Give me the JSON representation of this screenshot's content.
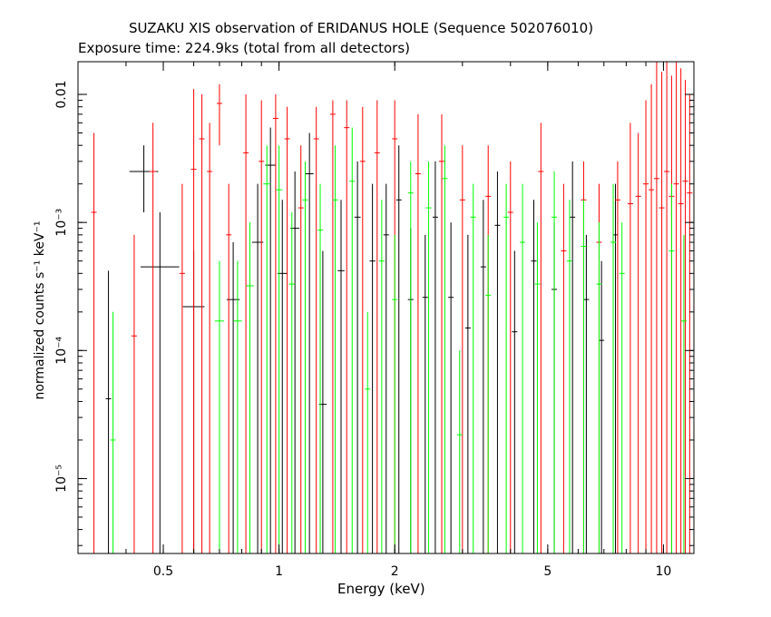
{
  "chart_data": {
    "type": "scatter",
    "title": "SUZAKU XIS observation of ERIDANUS HOLE (Sequence 502076010)",
    "subtitle": "Exposure time: 224.9ks (total from all detectors)",
    "xlabel": "Energy (keV)",
    "ylabel": "normalized counts s⁻¹ keV⁻¹",
    "x_scale": "log",
    "y_scale": "log",
    "xlim": [
      0.3,
      12
    ],
    "ylim": [
      2.6e-06,
      0.018
    ],
    "x_ticks": [
      {
        "value": 0.5,
        "label": "0.5"
      },
      {
        "value": 1,
        "label": "1"
      },
      {
        "value": 2,
        "label": "2"
      },
      {
        "value": 5,
        "label": "5"
      },
      {
        "value": 10,
        "label": "10"
      }
    ],
    "y_ticks": [
      {
        "value": 1e-05,
        "label": "10⁻⁵"
      },
      {
        "value": 0.0001,
        "label": "10⁻⁴"
      },
      {
        "value": 0.001,
        "label": "10⁻³"
      },
      {
        "value": 0.01,
        "label": "0.01"
      }
    ],
    "series": [
      {
        "color": "#000000",
        "points": [
          {
            "x": 0.36,
            "y": 4.2e-05,
            "xerr": 0.0,
            "ylo": 2.6e-06,
            "yhi": 0.00042
          },
          {
            "x": 0.445,
            "y": 0.0025,
            "xerr": 0.04,
            "ylo": 0.0012,
            "yhi": 0.004
          },
          {
            "x": 0.49,
            "y": 0.00045,
            "xerr": 0.06,
            "ylo": 2.6e-06,
            "yhi": 0.0012
          },
          {
            "x": 0.6,
            "y": 0.00022,
            "xerr": 0.04,
            "ylo": 2.6e-06,
            "yhi": 0.0006
          },
          {
            "x": 0.76,
            "y": 0.00025,
            "xerr": 0.03,
            "ylo": 2.6e-06,
            "yhi": 0.0007
          },
          {
            "x": 0.88,
            "y": 0.0007,
            "xerr": 0.03,
            "ylo": 2.6e-06,
            "yhi": 0.002
          },
          {
            "x": 0.95,
            "y": 0.0028,
            "xerr": 0.03,
            "ylo": 2.6e-06,
            "yhi": 0.0055
          },
          {
            "x": 1.02,
            "y": 0.0004,
            "xerr": 0.03,
            "ylo": 2.6e-06,
            "yhi": 0.0015
          },
          {
            "x": 1.1,
            "y": 0.0009,
            "xerr": 0.03,
            "ylo": 2.6e-06,
            "yhi": 0.0025
          },
          {
            "x": 1.2,
            "y": 0.0024,
            "xerr": 0.03,
            "ylo": 2.6e-06,
            "yhi": 0.005
          },
          {
            "x": 1.3,
            "y": 3.8e-05,
            "xerr": 0.03,
            "ylo": 2.6e-06,
            "yhi": 0.0006
          },
          {
            "x": 1.45,
            "y": 0.00042,
            "xerr": 0.03,
            "ylo": 2.6e-06,
            "yhi": 0.0015
          },
          {
            "x": 1.6,
            "y": 0.0011,
            "xerr": 0.03,
            "ylo": 2.6e-06,
            "yhi": 0.003
          },
          {
            "x": 1.75,
            "y": 0.0005,
            "xerr": 0.03,
            "ylo": 2.6e-06,
            "yhi": 0.002
          },
          {
            "x": 1.9,
            "y": 0.0008,
            "xerr": 0.03,
            "ylo": 2.6e-06,
            "yhi": 0.002
          },
          {
            "x": 2.05,
            "y": 0.0015,
            "xerr": 0.03,
            "ylo": 2.6e-06,
            "yhi": 0.004
          },
          {
            "x": 2.2,
            "y": 0.00025,
            "xerr": 0.03,
            "ylo": 2.6e-06,
            "yhi": 0.0009
          },
          {
            "x": 2.4,
            "y": 0.00026,
            "xerr": 0.03,
            "ylo": 2.6e-06,
            "yhi": 0.0008
          },
          {
            "x": 2.55,
            "y": 0.0011,
            "xerr": 0.03,
            "ylo": 2.6e-06,
            "yhi": 0.003
          },
          {
            "x": 2.8,
            "y": 0.00026,
            "xerr": 0.03,
            "ylo": 2.6e-06,
            "yhi": 0.001
          },
          {
            "x": 3.1,
            "y": 0.00015,
            "xerr": 0.03,
            "ylo": 2.6e-06,
            "yhi": 0.0008
          },
          {
            "x": 3.4,
            "y": 0.00045,
            "xerr": 0.03,
            "ylo": 2.6e-06,
            "yhi": 0.0015
          },
          {
            "x": 3.7,
            "y": 0.00095,
            "xerr": 0.03,
            "ylo": 2.6e-06,
            "yhi": 0.0025
          },
          {
            "x": 4.1,
            "y": 0.00014,
            "xerr": 0.03,
            "ylo": 2.6e-06,
            "yhi": 0.0006
          },
          {
            "x": 4.6,
            "y": 0.0005,
            "xerr": 0.03,
            "ylo": 2.6e-06,
            "yhi": 0.0015
          },
          {
            "x": 5.2,
            "y": 0.0003,
            "xerr": 0.04,
            "ylo": 2.6e-06,
            "yhi": 0.001
          },
          {
            "x": 5.8,
            "y": 0.0011,
            "xerr": 0.04,
            "ylo": 2.6e-06,
            "yhi": 0.003
          },
          {
            "x": 6.3,
            "y": 0.00025,
            "xerr": 0.04,
            "ylo": 2.6e-06,
            "yhi": 0.0008
          },
          {
            "x": 6.9,
            "y": 0.00012,
            "xerr": 0.05,
            "ylo": 2.6e-06,
            "yhi": 0.0005
          },
          {
            "x": 7.5,
            "y": 0.0008,
            "xerr": 0.05,
            "ylo": 2.6e-06,
            "yhi": 0.002
          }
        ]
      },
      {
        "color": "#ff0000",
        "points": [
          {
            "x": 0.33,
            "y": 0.0012,
            "xerr": 0.0,
            "ylo": 2.6e-06,
            "yhi": 0.005
          },
          {
            "x": 0.42,
            "y": 0.00013,
            "xerr": 0.0,
            "ylo": 2.6e-06,
            "yhi": 0.0008
          },
          {
            "x": 0.47,
            "y": 0.0025,
            "xerr": 0.01,
            "ylo": 2.6e-06,
            "yhi": 0.006
          },
          {
            "x": 0.56,
            "y": 0.0004,
            "xerr": 0.0,
            "ylo": 2.6e-06,
            "yhi": 0.002
          },
          {
            "x": 0.6,
            "y": 0.0026,
            "xerr": 0.01,
            "ylo": 2.6e-06,
            "yhi": 0.011
          },
          {
            "x": 0.63,
            "y": 0.0045,
            "xerr": 0.01,
            "ylo": 2.6e-06,
            "yhi": 0.01
          },
          {
            "x": 0.66,
            "y": 0.0025,
            "xerr": 0.01,
            "ylo": 2.6e-06,
            "yhi": 0.006
          },
          {
            "x": 0.7,
            "y": 0.0085,
            "xerr": 0.01,
            "ylo": 0.004,
            "yhi": 0.012
          },
          {
            "x": 0.74,
            "y": 0.0008,
            "xerr": 0.0,
            "ylo": 2.6e-06,
            "yhi": 0.002
          },
          {
            "x": 0.82,
            "y": 0.0035,
            "xerr": 0.01,
            "ylo": 2.6e-06,
            "yhi": 0.01
          },
          {
            "x": 0.9,
            "y": 0.003,
            "xerr": 0.01,
            "ylo": 2.6e-06,
            "yhi": 0.009
          },
          {
            "x": 0.98,
            "y": 0.0065,
            "xerr": 0.01,
            "ylo": 2.6e-06,
            "yhi": 0.01
          },
          {
            "x": 1.05,
            "y": 0.0045,
            "xerr": 0.01,
            "ylo": 2.6e-06,
            "yhi": 0.008
          },
          {
            "x": 1.14,
            "y": 0.0013,
            "xerr": 0.01,
            "ylo": 2.6e-06,
            "yhi": 0.004
          },
          {
            "x": 1.25,
            "y": 0.0045,
            "xerr": 0.01,
            "ylo": 2.6e-06,
            "yhi": 0.008
          },
          {
            "x": 1.38,
            "y": 0.007,
            "xerr": 0.01,
            "ylo": 2.6e-06,
            "yhi": 0.009
          },
          {
            "x": 1.5,
            "y": 0.0055,
            "xerr": 0.01,
            "ylo": 2.6e-06,
            "yhi": 0.009
          },
          {
            "x": 1.65,
            "y": 0.003,
            "xerr": 0.01,
            "ylo": 2.6e-06,
            "yhi": 0.008
          },
          {
            "x": 1.8,
            "y": 0.0035,
            "xerr": 0.01,
            "ylo": 2.6e-06,
            "yhi": 0.009
          },
          {
            "x": 2.0,
            "y": 0.0045,
            "xerr": 0.02,
            "ylo": 2.6e-06,
            "yhi": 0.009
          },
          {
            "x": 2.3,
            "y": 0.0024,
            "xerr": 0.02,
            "ylo": 2.6e-06,
            "yhi": 0.007
          },
          {
            "x": 2.65,
            "y": 0.003,
            "xerr": 0.02,
            "ylo": 2.6e-06,
            "yhi": 0.007
          },
          {
            "x": 3.0,
            "y": 0.0015,
            "xerr": 0.02,
            "ylo": 2.6e-06,
            "yhi": 0.004
          },
          {
            "x": 3.5,
            "y": 0.0016,
            "xerr": 0.02,
            "ylo": 2.6e-06,
            "yhi": 0.004
          },
          {
            "x": 4.0,
            "y": 0.0012,
            "xerr": 0.02,
            "ylo": 2.6e-06,
            "yhi": 0.003
          },
          {
            "x": 4.8,
            "y": 0.0025,
            "xerr": 0.02,
            "ylo": 2.6e-06,
            "yhi": 0.006
          },
          {
            "x": 5.5,
            "y": 0.0006,
            "xerr": 0.02,
            "ylo": 2.6e-06,
            "yhi": 0.002
          },
          {
            "x": 6.2,
            "y": 0.0015,
            "xerr": 0.02,
            "ylo": 2.6e-06,
            "yhi": 0.003
          },
          {
            "x": 6.8,
            "y": 0.0007,
            "xerr": 0.02,
            "ylo": 2.6e-06,
            "yhi": 0.002
          },
          {
            "x": 7.6,
            "y": 0.0015,
            "xerr": 0.02,
            "ylo": 2.6e-06,
            "yhi": 0.003
          },
          {
            "x": 8.2,
            "y": 0.0014,
            "xerr": 0.03,
            "ylo": 2.6e-06,
            "yhi": 0.006
          },
          {
            "x": 8.6,
            "y": 0.0016,
            "xerr": 0.03,
            "ylo": 2.6e-06,
            "yhi": 0.005
          },
          {
            "x": 9.0,
            "y": 0.002,
            "xerr": 0.03,
            "ylo": 2.6e-06,
            "yhi": 0.009
          },
          {
            "x": 9.3,
            "y": 0.0018,
            "xerr": 0.03,
            "ylo": 2.6e-06,
            "yhi": 0.012
          },
          {
            "x": 9.6,
            "y": 0.0022,
            "xerr": 0.03,
            "ylo": 2.6e-06,
            "yhi": 0.018
          },
          {
            "x": 9.9,
            "y": 0.0013,
            "xerr": 0.03,
            "ylo": 2.6e-06,
            "yhi": 0.015
          },
          {
            "x": 10.2,
            "y": 0.0025,
            "xerr": 0.03,
            "ylo": 2.6e-06,
            "yhi": 0.018
          },
          {
            "x": 10.5,
            "y": 0.0016,
            "xerr": 0.03,
            "ylo": 2.6e-06,
            "yhi": 0.014
          },
          {
            "x": 10.8,
            "y": 0.002,
            "xerr": 0.03,
            "ylo": 2.6e-06,
            "yhi": 0.018
          },
          {
            "x": 11.1,
            "y": 0.0014,
            "xerr": 0.03,
            "ylo": 2.6e-06,
            "yhi": 0.016
          },
          {
            "x": 11.4,
            "y": 0.0021,
            "xerr": 0.03,
            "ylo": 2.6e-06,
            "yhi": 0.013
          },
          {
            "x": 11.7,
            "y": 0.0017,
            "xerr": 0.03,
            "ylo": 2.6e-06,
            "yhi": 0.01
          }
        ]
      },
      {
        "color": "#00ff00",
        "points": [
          {
            "x": 0.37,
            "y": 2e-05,
            "xerr": 0.0,
            "ylo": 2.6e-06,
            "yhi": 0.0002
          },
          {
            "x": 0.7,
            "y": 0.00017,
            "xerr": 0.02,
            "ylo": 2.6e-06,
            "yhi": 0.0005
          },
          {
            "x": 0.78,
            "y": 0.00017,
            "xerr": 0.02,
            "ylo": 2.6e-06,
            "yhi": 0.0005
          },
          {
            "x": 0.84,
            "y": 0.00032,
            "xerr": 0.02,
            "ylo": 2.6e-06,
            "yhi": 0.001
          },
          {
            "x": 0.93,
            "y": 0.002,
            "xerr": 0.02,
            "ylo": 2.6e-06,
            "yhi": 0.004
          },
          {
            "x": 1.0,
            "y": 0.0018,
            "xerr": 0.02,
            "ylo": 2.6e-06,
            "yhi": 0.004
          },
          {
            "x": 1.08,
            "y": 0.00033,
            "xerr": 0.02,
            "ylo": 2.6e-06,
            "yhi": 0.0012
          },
          {
            "x": 1.17,
            "y": 0.0015,
            "xerr": 0.02,
            "ylo": 2.6e-06,
            "yhi": 0.003
          },
          {
            "x": 1.28,
            "y": 0.00087,
            "xerr": 0.02,
            "ylo": 2.6e-06,
            "yhi": 0.002
          },
          {
            "x": 1.4,
            "y": 0.0015,
            "xerr": 0.02,
            "ylo": 2.6e-06,
            "yhi": 0.004
          },
          {
            "x": 1.55,
            "y": 0.0021,
            "xerr": 0.02,
            "ylo": 2.6e-06,
            "yhi": 0.0055
          },
          {
            "x": 1.7,
            "y": 5e-05,
            "xerr": 0.02,
            "ylo": 2.6e-06,
            "yhi": 0.0002
          },
          {
            "x": 1.85,
            "y": 0.0005,
            "xerr": 0.02,
            "ylo": 2.6e-06,
            "yhi": 0.0015
          },
          {
            "x": 2.0,
            "y": 0.00025,
            "xerr": 0.02,
            "ylo": 2.6e-06,
            "yhi": 0.0008
          },
          {
            "x": 2.2,
            "y": 0.0017,
            "xerr": 0.02,
            "ylo": 2.6e-06,
            "yhi": 0.003
          },
          {
            "x": 2.45,
            "y": 0.0013,
            "xerr": 0.02,
            "ylo": 2.6e-06,
            "yhi": 0.003
          },
          {
            "x": 2.7,
            "y": 0.0022,
            "xerr": 0.02,
            "ylo": 2.6e-06,
            "yhi": 0.004
          },
          {
            "x": 2.95,
            "y": 2.2e-05,
            "xerr": 0.02,
            "ylo": 2.6e-06,
            "yhi": 0.0001
          },
          {
            "x": 3.2,
            "y": 0.0011,
            "xerr": 0.02,
            "ylo": 2.6e-06,
            "yhi": 0.002
          },
          {
            "x": 3.5,
            "y": 0.00027,
            "xerr": 0.02,
            "ylo": 2.6e-06,
            "yhi": 0.0008
          },
          {
            "x": 3.9,
            "y": 0.0011,
            "xerr": 0.02,
            "ylo": 2.6e-06,
            "yhi": 0.002
          },
          {
            "x": 4.3,
            "y": 0.0007,
            "xerr": 0.02,
            "ylo": 2.6e-06,
            "yhi": 0.002
          },
          {
            "x": 4.7,
            "y": 0.00033,
            "xerr": 0.02,
            "ylo": 2.6e-06,
            "yhi": 0.001
          },
          {
            "x": 5.2,
            "y": 0.0011,
            "xerr": 0.02,
            "ylo": 2.6e-06,
            "yhi": 0.0025
          },
          {
            "x": 5.7,
            "y": 0.0005,
            "xerr": 0.02,
            "ylo": 2.6e-06,
            "yhi": 0.0015
          },
          {
            "x": 6.2,
            "y": 0.00065,
            "xerr": 0.02,
            "ylo": 2.6e-06,
            "yhi": 0.0015
          },
          {
            "x": 6.8,
            "y": 0.00033,
            "xerr": 0.02,
            "ylo": 2.6e-06,
            "yhi": 0.001
          },
          {
            "x": 7.4,
            "y": 0.0007,
            "xerr": 0.02,
            "ylo": 2.6e-06,
            "yhi": 0.002
          },
          {
            "x": 7.8,
            "y": 0.0004,
            "xerr": 0.02,
            "ylo": 2.6e-06,
            "yhi": 0.001
          },
          {
            "x": 10.5,
            "y": 0.0006,
            "xerr": 0.03,
            "ylo": 2.6e-06,
            "yhi": 0.002
          },
          {
            "x": 11.3,
            "y": 0.00017,
            "xerr": 0.03,
            "ylo": 2.6e-06,
            "yhi": 0.0008
          }
        ]
      }
    ],
    "grid": false,
    "legend": "none"
  }
}
